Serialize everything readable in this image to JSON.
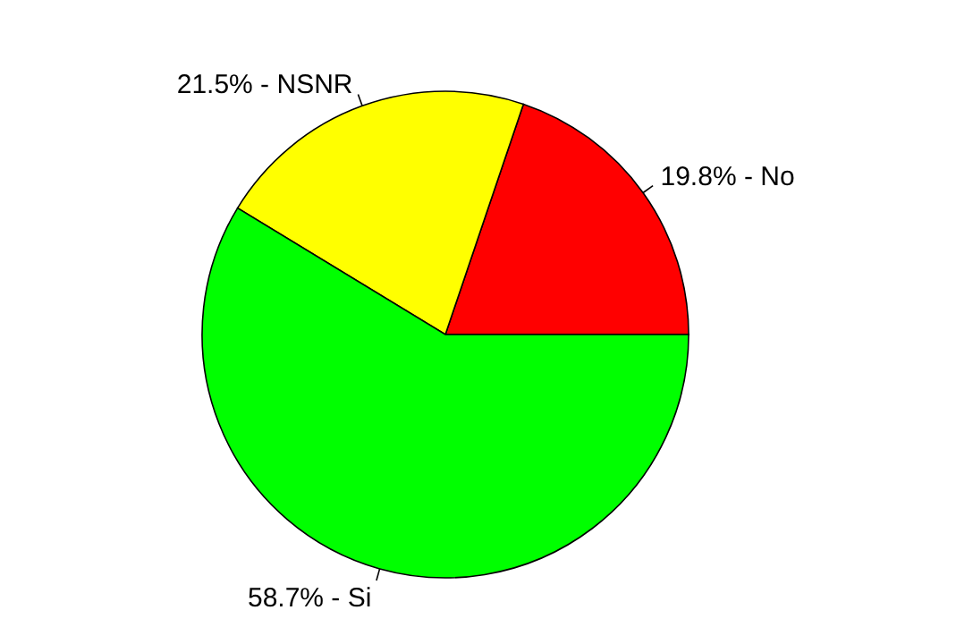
{
  "chart_data": {
    "type": "pie",
    "categories": [
      "No",
      "NSNR",
      "Si"
    ],
    "values": [
      19.8,
      21.5,
      58.7
    ],
    "colors": [
      "#ff0000",
      "#ffff00",
      "#00ff00"
    ],
    "value_labels": [
      "19.8% -",
      "21.5% -",
      "58.7% -"
    ]
  }
}
